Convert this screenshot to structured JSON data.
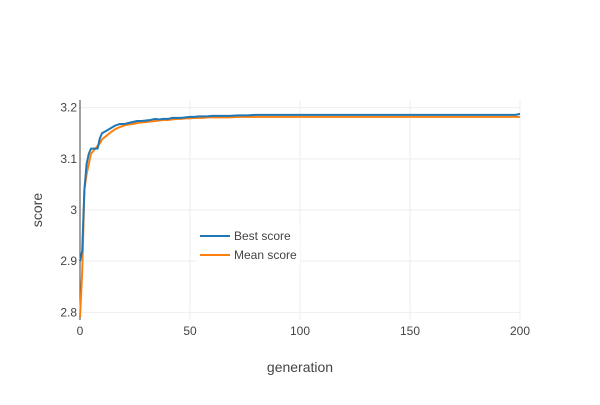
{
  "chart_data": {
    "type": "line",
    "xlabel": "generation",
    "ylabel": "score",
    "xlim": [
      0,
      200
    ],
    "ylim": [
      2.785,
      3.215
    ],
    "grid": true,
    "legend_position": "center-left",
    "x_ticks": [
      0,
      50,
      100,
      150,
      200
    ],
    "x_tick_labels": [
      "0",
      "50",
      "100",
      "150",
      "200"
    ],
    "y_ticks": [
      2.8,
      2.9,
      3.0,
      3.1,
      3.2
    ],
    "y_tick_labels": [
      "2.8",
      "2.9",
      "3",
      "3.1",
      "3.2"
    ],
    "series": [
      {
        "name": "Best score",
        "color": "#1f77b4",
        "x": [
          0,
          1,
          2,
          3,
          4,
          5,
          6,
          7,
          8,
          9,
          10,
          12,
          14,
          16,
          18,
          20,
          22,
          24,
          26,
          28,
          30,
          32,
          34,
          36,
          38,
          40,
          42,
          44,
          46,
          48,
          50,
          52,
          54,
          56,
          58,
          60,
          64,
          68,
          72,
          76,
          80,
          85,
          90,
          95,
          100,
          110,
          120,
          130,
          140,
          150,
          155,
          160,
          170,
          180,
          190,
          195,
          198,
          200
        ],
        "values": [
          2.9,
          2.92,
          3.04,
          3.09,
          3.11,
          3.12,
          3.12,
          3.12,
          3.12,
          3.14,
          3.15,
          3.155,
          3.16,
          3.165,
          3.168,
          3.168,
          3.17,
          3.172,
          3.174,
          3.174,
          3.175,
          3.176,
          3.178,
          3.177,
          3.178,
          3.178,
          3.18,
          3.18,
          3.18,
          3.181,
          3.182,
          3.182,
          3.183,
          3.183,
          3.183,
          3.184,
          3.184,
          3.184,
          3.185,
          3.185,
          3.186,
          3.186,
          3.186,
          3.186,
          3.186,
          3.186,
          3.186,
          3.186,
          3.186,
          3.186,
          3.186,
          3.186,
          3.186,
          3.186,
          3.186,
          3.186,
          3.186,
          3.188
        ]
      },
      {
        "name": "Mean score",
        "color": "#ff7f0e",
        "x": [
          0,
          1,
          2,
          3,
          4,
          5,
          6,
          7,
          8,
          9,
          10,
          12,
          14,
          16,
          18,
          20,
          22,
          24,
          26,
          28,
          30,
          32,
          34,
          36,
          38,
          40,
          42,
          44,
          46,
          48,
          50,
          52,
          54,
          56,
          58,
          60,
          64,
          68,
          72,
          76,
          80,
          85,
          90,
          95,
          100,
          110,
          120,
          130,
          140,
          150,
          160,
          170,
          180,
          190,
          200
        ],
        "values": [
          2.79,
          2.88,
          3.04,
          3.07,
          3.09,
          3.11,
          3.115,
          3.12,
          3.125,
          3.13,
          3.138,
          3.145,
          3.152,
          3.158,
          3.162,
          3.165,
          3.167,
          3.168,
          3.17,
          3.171,
          3.172,
          3.173,
          3.174,
          3.175,
          3.176,
          3.176,
          3.177,
          3.178,
          3.178,
          3.179,
          3.179,
          3.18,
          3.18,
          3.18,
          3.181,
          3.181,
          3.181,
          3.181,
          3.182,
          3.182,
          3.182,
          3.182,
          3.182,
          3.182,
          3.182,
          3.182,
          3.182,
          3.182,
          3.182,
          3.182,
          3.182,
          3.182,
          3.182,
          3.182,
          3.182
        ]
      }
    ]
  }
}
